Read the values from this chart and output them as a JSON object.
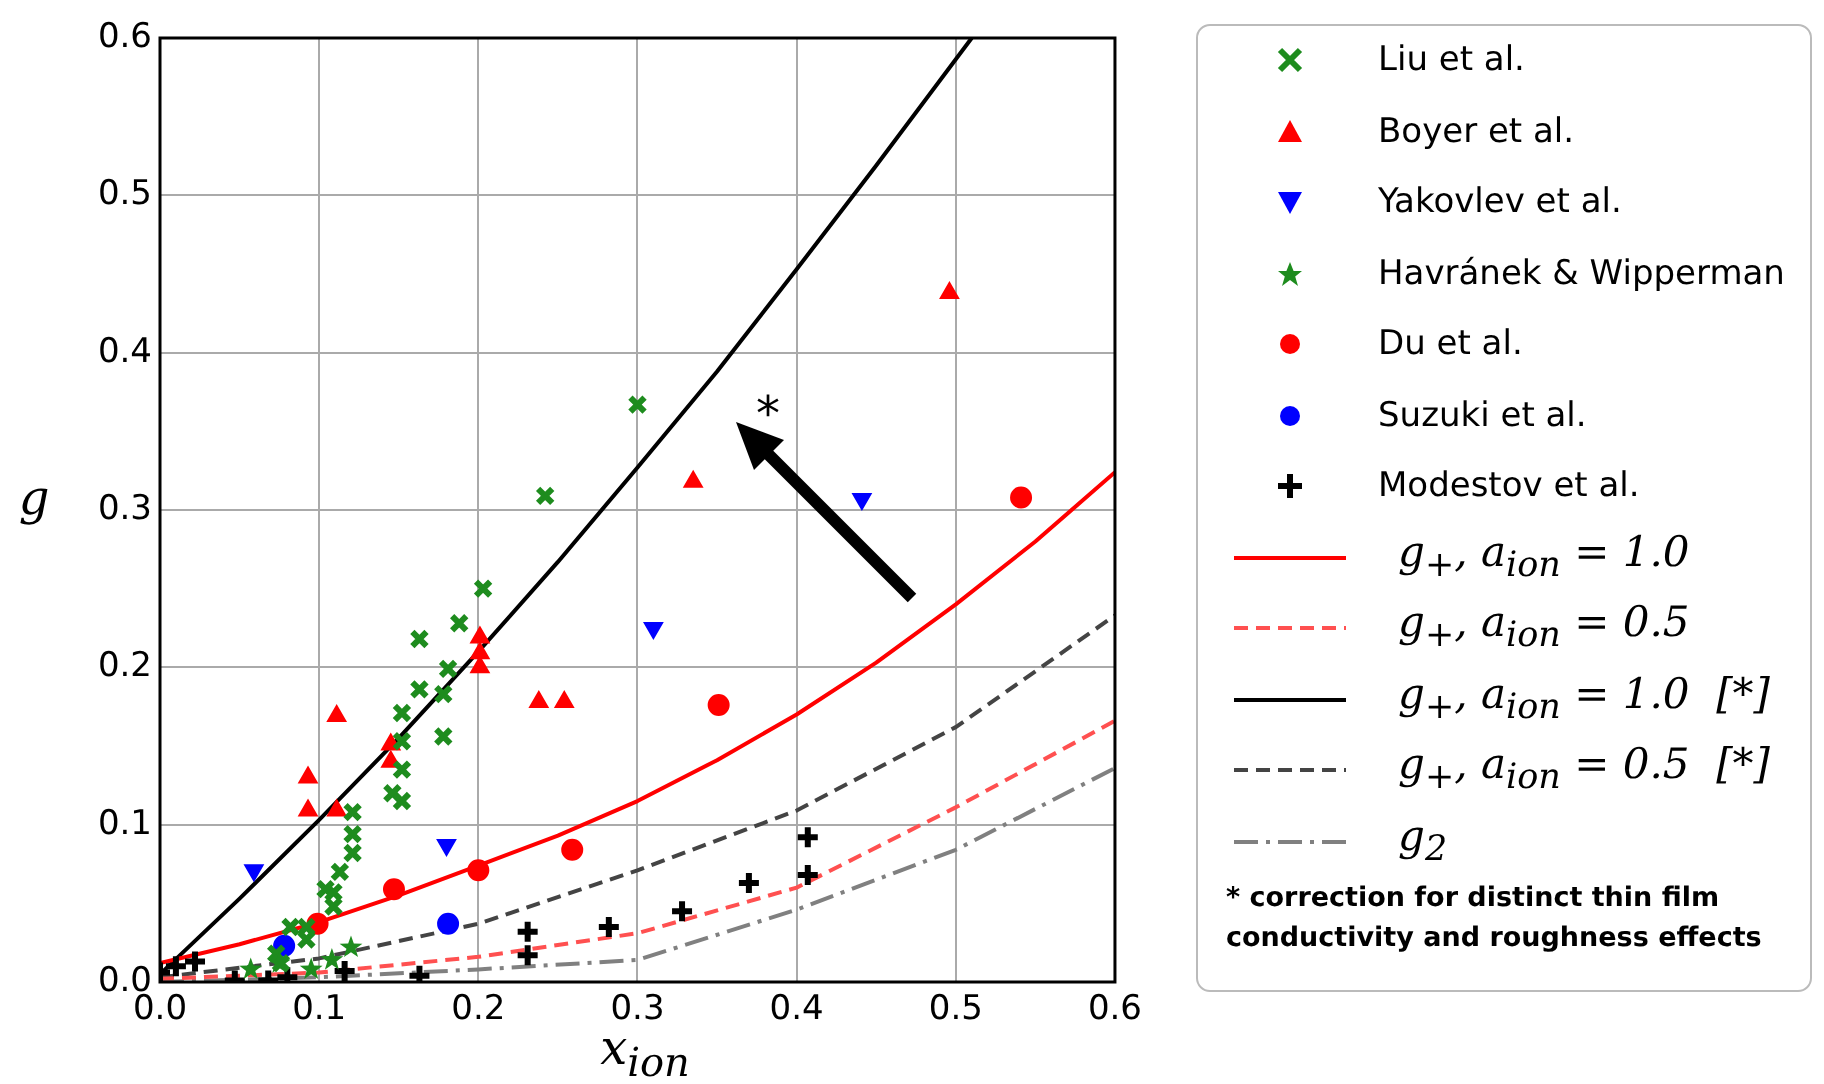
{
  "chart_data": {
    "type": "scatter",
    "xlabel": "x$_{ion}$",
    "ylabel": "g",
    "xlim": [
      0,
      0.6
    ],
    "ylim": [
      0,
      0.6
    ],
    "xticks": [
      {
        "value": 0,
        "label": "0.0"
      },
      {
        "value": 0.1,
        "label": "0.1"
      },
      {
        "value": 0.2,
        "label": "0.2"
      },
      {
        "value": 0.3,
        "label": "0.3"
      },
      {
        "value": 0.4,
        "label": "0.4"
      },
      {
        "value": 0.5,
        "label": "0.5"
      },
      {
        "value": 0.6,
        "label": "0.6"
      }
    ],
    "yticks": [
      {
        "value": 0,
        "label": "0.0"
      },
      {
        "value": 0.1,
        "label": "0.1"
      },
      {
        "value": 0.2,
        "label": "0.2"
      },
      {
        "value": 0.3,
        "label": "0.3"
      },
      {
        "value": 0.4,
        "label": "0.4"
      },
      {
        "value": 0.5,
        "label": "0.5"
      },
      {
        "value": 0.6,
        "label": "0.6"
      }
    ],
    "grid": true,
    "legend": "right",
    "annotations": [
      "*",
      "* correction for distinct thin film conductivity and roughness effects"
    ],
    "series": [
      {
        "name": "Liu et al.",
        "type": "scatter",
        "marker": "x",
        "color": "#1e8c1e",
        "x": [
          0.203,
          0.188,
          0.163,
          0.181,
          0.163,
          0.178,
          0.152,
          0.152,
          0.178,
          0.152,
          0.146,
          0.152,
          0.121,
          0.121,
          0.121,
          0.113,
          0.109,
          0.104,
          0.109,
          0.082,
          0.092,
          0.092,
          0.073,
          0.076,
          0.3,
          0.242
        ],
        "values": [
          0.25,
          0.228,
          0.218,
          0.199,
          0.186,
          0.183,
          0.171,
          0.153,
          0.156,
          0.135,
          0.12,
          0.115,
          0.108,
          0.094,
          0.082,
          0.07,
          0.057,
          0.059,
          0.048,
          0.035,
          0.035,
          0.027,
          0.018,
          0.012,
          0.367,
          0.309
        ]
      },
      {
        "name": "Boyer et al.",
        "type": "scatter",
        "marker": "triangle",
        "color": "#ff0000",
        "x": [
          0.093,
          0.093,
          0.111,
          0.111,
          0.145,
          0.145,
          0.201,
          0.201,
          0.201,
          0.238,
          0.254,
          0.335,
          0.496
        ],
        "values": [
          0.13,
          0.109,
          0.169,
          0.109,
          0.151,
          0.14,
          0.219,
          0.209,
          0.2,
          0.178,
          0.178,
          0.318,
          0.438
        ]
      },
      {
        "name": "Yakovlev et al.",
        "type": "scatter",
        "marker": "triangle-down",
        "color": "#0000ff",
        "x": [
          0.059,
          0.18,
          0.31,
          0.441
        ],
        "values": [
          0.071,
          0.087,
          0.225,
          0.307
        ]
      },
      {
        "name": "Havránek & Wipperman",
        "type": "scatter",
        "marker": "star",
        "color": "#1e8c1e",
        "x": [
          0.057,
          0.075,
          0.095,
          0.108,
          0.12
        ],
        "values": [
          0.008,
          0.012,
          0.008,
          0.014,
          0.022
        ]
      },
      {
        "name": "Du et al.",
        "type": "scatter",
        "marker": "circle",
        "color": "#ff0000",
        "x": [
          0.099,
          0.147,
          0.2,
          0.259,
          0.351,
          0.541
        ],
        "values": [
          0.037,
          0.059,
          0.071,
          0.084,
          0.176,
          0.308
        ]
      },
      {
        "name": "Suzuki et al.",
        "type": "scatter",
        "marker": "circle",
        "color": "#0000ff",
        "x": [
          0.078,
          0.181
        ],
        "values": [
          0.023,
          0.037
        ]
      },
      {
        "name": "Modestov et al.",
        "type": "scatter",
        "marker": "cross",
        "color": "#000000",
        "x": [
          0,
          0.01,
          0.022,
          0.047,
          0.068,
          0.08,
          0.116,
          0.163,
          0.231,
          0.231,
          0.282,
          0.328,
          0.37,
          0.407,
          0.407
        ],
        "values": [
          0.006,
          0.01,
          0.013,
          0.001,
          0.001,
          0.003,
          0.007,
          0.004,
          0.032,
          0.017,
          0.035,
          0.045,
          0.063,
          0.092,
          0.068
        ]
      },
      {
        "name": "g$_{+}$, a$_{ion}$ = 1.0",
        "type": "line",
        "marker": "none",
        "line_style": "solid",
        "color": "#ff0000",
        "x": [
          0,
          0.05,
          0.1,
          0.15,
          0.2,
          0.25,
          0.3,
          0.35,
          0.4,
          0.45,
          0.5,
          0.55,
          0.6
        ],
        "values": [
          0.012,
          0.024,
          0.038,
          0.055,
          0.074,
          0.093,
          0.115,
          0.141,
          0.17,
          0.203,
          0.24,
          0.28,
          0.324
        ]
      },
      {
        "name": "g$_{+}$, a$_{ion}$ = 0.5",
        "type": "line",
        "marker": "none",
        "line_style": "dashed",
        "color": "#ff5050",
        "x": [
          0,
          0.1,
          0.2,
          0.3,
          0.4,
          0.5,
          0.6
        ],
        "values": [
          0.002,
          0.006,
          0.016,
          0.031,
          0.06,
          0.111,
          0.166
        ]
      },
      {
        "name": "g$_{+}$, a$_{ion}$ = 1.0  [*]",
        "type": "line",
        "marker": "none",
        "line_style": "solid",
        "color": "#000000",
        "x": [
          0,
          0.05,
          0.1,
          0.15,
          0.2,
          0.25,
          0.3,
          0.35,
          0.4,
          0.45,
          0.51
        ],
        "values": [
          0.005,
          0.053,
          0.103,
          0.155,
          0.21,
          0.267,
          0.327,
          0.388,
          0.453,
          0.519,
          0.6
        ]
      },
      {
        "name": "g$_{+}$, a$_{ion}$ = 0.5  [*]",
        "type": "line",
        "marker": "none",
        "line_style": "dashed",
        "color": "#444444",
        "x": [
          0,
          0.1,
          0.2,
          0.3,
          0.4,
          0.5,
          0.6
        ],
        "values": [
          0.003,
          0.015,
          0.037,
          0.071,
          0.109,
          0.162,
          0.233
        ]
      },
      {
        "name": "g$_{2}$",
        "type": "line",
        "marker": "none",
        "line_style": "dashdot",
        "color": "#808080",
        "x": [
          0,
          0.1,
          0.2,
          0.3,
          0.4,
          0.5,
          0.6
        ],
        "values": [
          0,
          0.003,
          0.008,
          0.014,
          0.046,
          0.084,
          0.136
        ]
      }
    ]
  }
}
